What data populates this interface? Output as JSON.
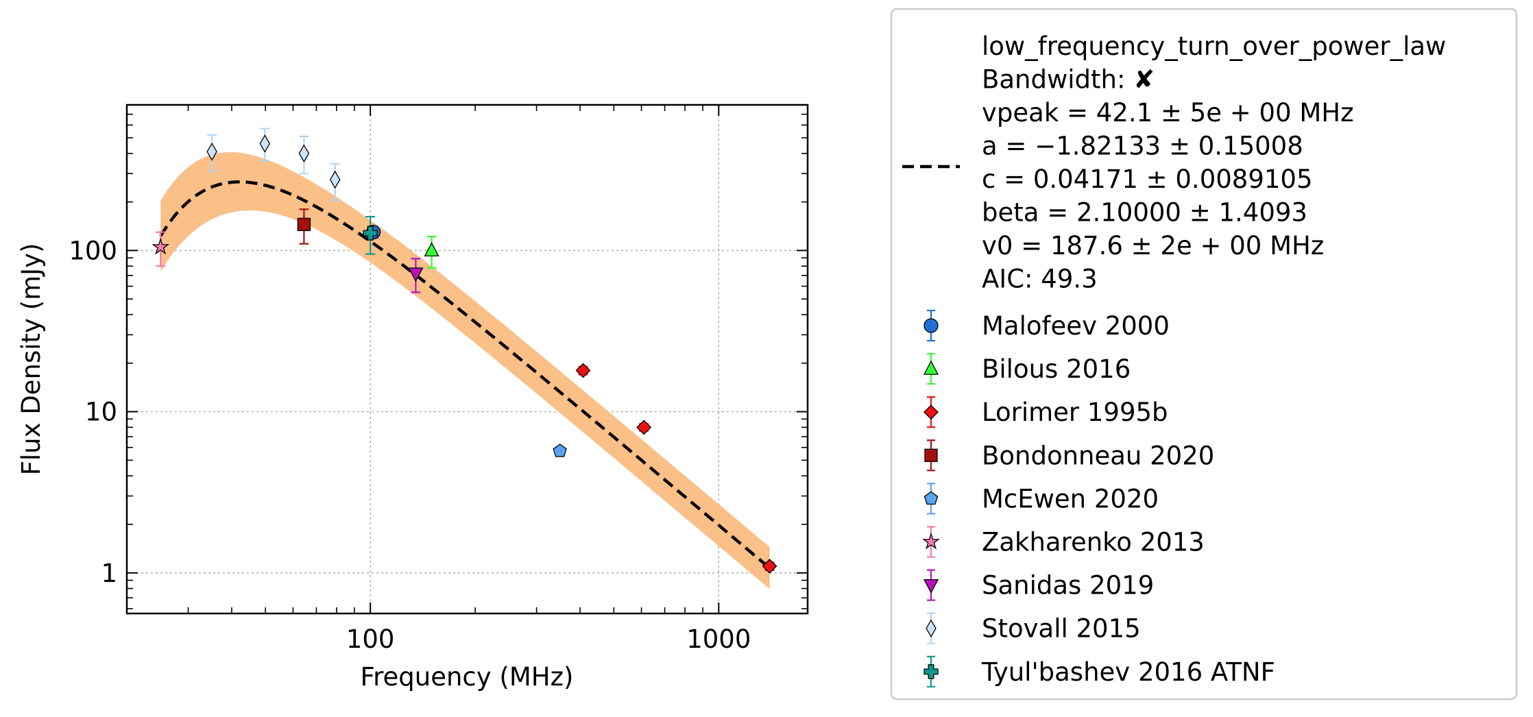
{
  "chart_data": {
    "type": "scatter",
    "xlabel": "Frequency (MHz)",
    "ylabel": "Flux Density (mJy)",
    "xscale": "log",
    "yscale": "log",
    "xlim": [
      20,
      1800
    ],
    "ylim": [
      0.56,
      800
    ],
    "grid": true,
    "legend_position": "outside-right",
    "x_ticks": [
      {
        "value": 100,
        "label": "100"
      },
      {
        "value": 1000,
        "label": "1000"
      }
    ],
    "y_ticks": [
      {
        "value": 1,
        "label": "1"
      },
      {
        "value": 10,
        "label": "10"
      },
      {
        "value": 100,
        "label": "100"
      }
    ],
    "fit": {
      "model": "low_frequency_turn_over_power_law",
      "line_style": "dashed",
      "line_color": "#000000",
      "band_color": "#fbbf88",
      "x_range": [
        25,
        1400
      ],
      "params": {
        "vpeak": 42.1,
        "a": -1.82133,
        "c": 0.04171,
        "beta": 2.1,
        "v0": 187.6
      },
      "legend_lines": [
        "low_frequency_turn_over_power_law",
        "Bandwidth: ✘",
        "vpeak = 42.1 ± 5e + 00 MHz",
        "a = −1.82133 ± 0.15008",
        "c = 0.04171 ± 0.0089105",
        "beta = 2.10000 ± 1.4093",
        "v0 = 187.6 ± 2e + 00 MHz",
        "AIC: 49.3"
      ]
    },
    "series": [
      {
        "name": "Malofeev 2000",
        "marker": "circle",
        "color": "#1f6fd6",
        "err_color": "#1f6fd6",
        "points": [
          {
            "x": 102,
            "y": 130,
            "ylo": 120,
            "yhi": 140
          }
        ]
      },
      {
        "name": "Bilous 2016",
        "marker": "triangle-up",
        "color": "#33ff33",
        "err_color": "#33ff33",
        "points": [
          {
            "x": 150,
            "y": 100,
            "ylo": 78,
            "yhi": 122
          }
        ]
      },
      {
        "name": "Lorimer 1995b",
        "marker": "diamond",
        "color": "#ee1111",
        "err_color": "#ee1111",
        "points": [
          {
            "x": 408,
            "y": 18,
            "ylo": 17,
            "yhi": 19
          },
          {
            "x": 610,
            "y": 8,
            "ylo": 7.6,
            "yhi": 8.4
          },
          {
            "x": 1400,
            "y": 1.1,
            "ylo": 1.04,
            "yhi": 1.16
          }
        ]
      },
      {
        "name": "Bondonneau 2020",
        "marker": "square",
        "color": "#a50f0f",
        "err_color": "#a50f0f",
        "points": [
          {
            "x": 64.5,
            "y": 145,
            "ylo": 110,
            "yhi": 180
          }
        ]
      },
      {
        "name": "McEwen 2020",
        "marker": "pentagon",
        "color": "#5aa2f0",
        "err_color": "#5aa2f0",
        "points": [
          {
            "x": 350,
            "y": 5.7,
            "ylo": 5.4,
            "yhi": 6.0
          }
        ]
      },
      {
        "name": "Zakharenko 2013",
        "marker": "star",
        "color": "#f47ab4",
        "err_color": "#f47ab4",
        "points": [
          {
            "x": 25,
            "y": 105,
            "ylo": 80,
            "yhi": 130
          }
        ]
      },
      {
        "name": "Sanidas 2019",
        "marker": "triangle-down",
        "color": "#bb11bb",
        "err_color": "#bb11bb",
        "points": [
          {
            "x": 135,
            "y": 72,
            "ylo": 55,
            "yhi": 89
          }
        ]
      },
      {
        "name": "Stovall 2015",
        "marker": "thin-diamond",
        "color": "#cfe3f8",
        "err_color": "#b6d4f2",
        "points": [
          {
            "x": 35.1,
            "y": 410,
            "ylo": 310,
            "yhi": 520
          },
          {
            "x": 49.8,
            "y": 460,
            "ylo": 360,
            "yhi": 570
          },
          {
            "x": 64.5,
            "y": 400,
            "ylo": 300,
            "yhi": 510
          },
          {
            "x": 79.2,
            "y": 275,
            "ylo": 205,
            "yhi": 345
          }
        ]
      },
      {
        "name": "Tyul'bashev 2016 ATNF",
        "marker": "plus",
        "color": "#11998e",
        "err_color": "#11998e",
        "points": [
          {
            "x": 100,
            "y": 128,
            "ylo": 95,
            "yhi": 162
          }
        ]
      }
    ]
  }
}
